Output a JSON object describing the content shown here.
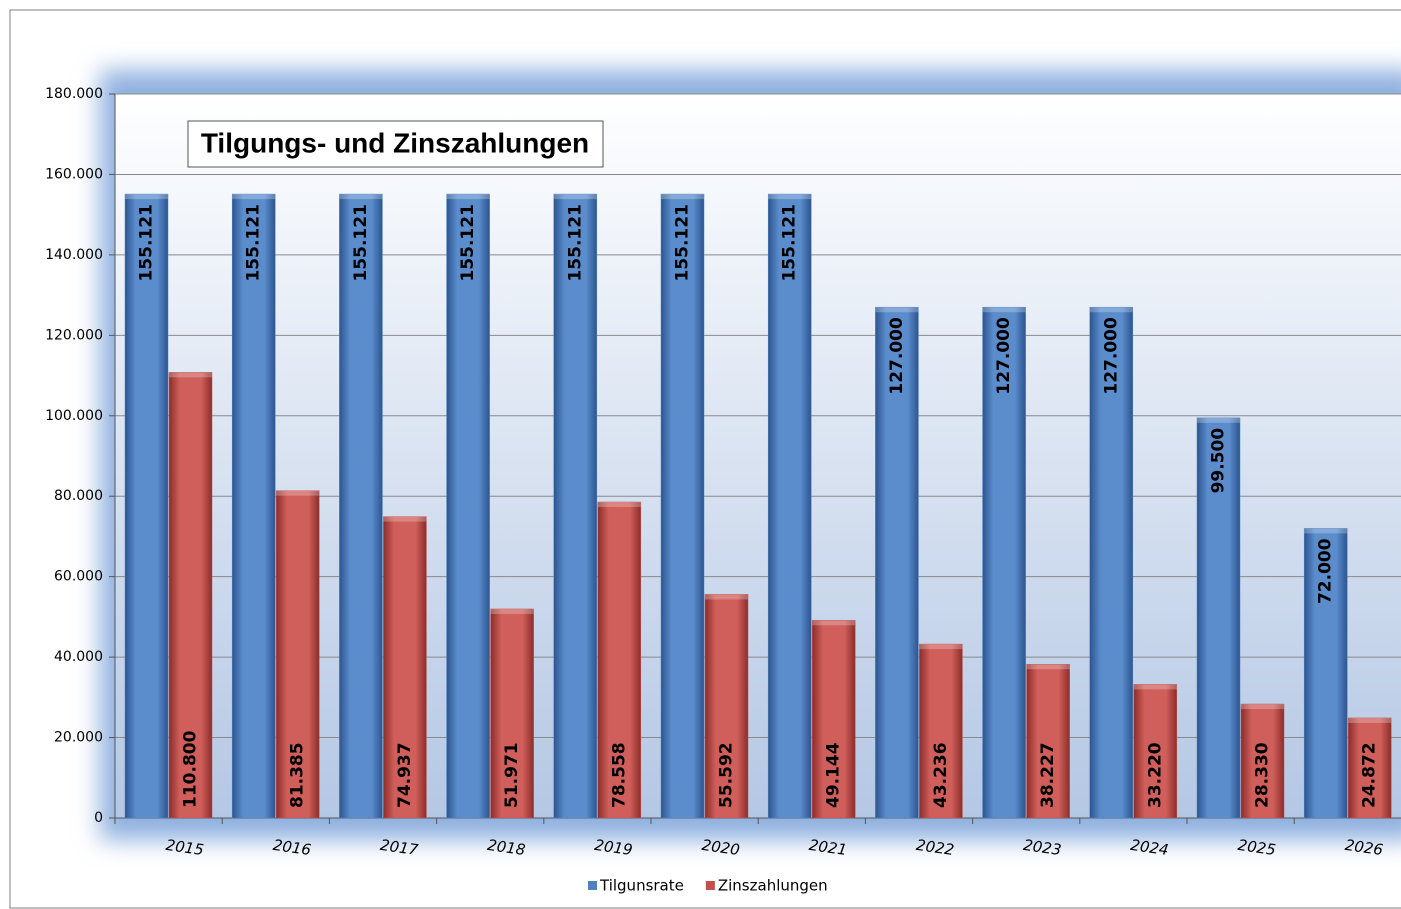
{
  "chart_data": {
    "type": "bar",
    "title": "Tilgungs- und Zinszahlungen",
    "categories": [
      "2015",
      "2016",
      "2017",
      "2018",
      "2019",
      "2020",
      "2021",
      "2022",
      "2023",
      "2024",
      "2025",
      "2026"
    ],
    "series": [
      {
        "name": "Tilgunsrate",
        "color": "#4f81bd",
        "values": [
          155121,
          155121,
          155121,
          155121,
          155121,
          155121,
          155121,
          127000,
          127000,
          127000,
          99500,
          72000
        ],
        "value_labels": [
          "155.121",
          "155.121",
          "155.121",
          "155.121",
          "155.121",
          "155.121",
          "155.121",
          "127.000",
          "127.000",
          "127.000",
          "99.500",
          "72.000"
        ]
      },
      {
        "name": "Zinszahlungen",
        "color": "#c0504d",
        "values": [
          110800,
          81385,
          74937,
          51971,
          78558,
          55592,
          49144,
          43236,
          38227,
          33220,
          28330,
          24872
        ],
        "value_labels": [
          "110.800",
          "81.385",
          "74.937",
          "51.971",
          "78.558",
          "55.592",
          "49.144",
          "43.236",
          "38.227",
          "33.220",
          "28.330",
          "24.872"
        ]
      }
    ],
    "ylim": [
      0,
      180000
    ],
    "yticks": [
      0,
      {
        "value": 20000,
        "label": "20.000"
      },
      {
        "value": 40000,
        "label": "40.000"
      },
      {
        "value": 60000,
        "label": "60.000"
      },
      {
        "value": 80000,
        "label": "80.000"
      },
      {
        "value": 100000,
        "label": "100.000"
      },
      {
        "value": 120000,
        "label": "120.000"
      },
      {
        "value": 140000,
        "label": "140.000"
      },
      {
        "value": 160000,
        "label": "160.000"
      },
      {
        "value": 180000,
        "label": "180.000"
      }
    ],
    "grid": true,
    "legend": "bottom"
  }
}
